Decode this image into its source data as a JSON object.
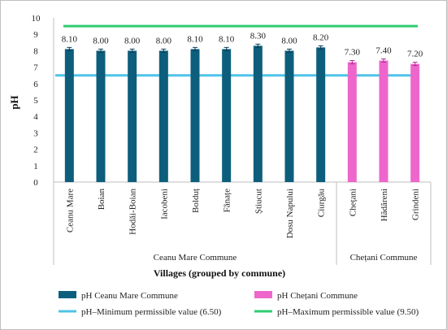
{
  "chart_data": {
    "type": "bar",
    "title": "",
    "ylabel": "pH",
    "xlabel": "Villages (grouped by commune)",
    "ylim": [
      0,
      10
    ],
    "yticks": [
      0,
      1,
      2,
      3,
      4,
      5,
      6,
      7,
      8,
      9,
      10
    ],
    "grid": false,
    "legend_position": "bottom",
    "series": [
      {
        "name": "pH Ceanu Mare Commune",
        "color": "#0d5e7c",
        "categories": [
          "Ceanu Mare",
          "Boian",
          "Hodăi-Boian",
          "Iacobeni",
          "Bolduț",
          "Fânațe",
          "Știucut",
          "Dosu Napului",
          "Ciurgău"
        ],
        "values": [
          8.1,
          8.0,
          8.0,
          8.0,
          8.1,
          8.1,
          8.3,
          8.0,
          8.2
        ],
        "labels": [
          "8.10",
          "8.00",
          "8.00",
          "8.00",
          "8.10",
          "8.10",
          "8.30",
          "8.00",
          "8.20"
        ]
      },
      {
        "name": "pH Chețani Commune",
        "color": "#ee66cc",
        "categories": [
          "Chețani",
          "Hădăreni",
          "Grindeni"
        ],
        "values": [
          7.3,
          7.4,
          7.2
        ],
        "labels": [
          "7.30",
          "7.40",
          "7.20"
        ]
      }
    ],
    "reference_lines": [
      {
        "name": "pH–Minimum permissible value (6.50)",
        "value": 6.5,
        "color": "#4fc3e8"
      },
      {
        "name": "pH–Maximum permissible value (9.50)",
        "value": 9.5,
        "color": "#2ecc71"
      }
    ],
    "groups": [
      {
        "label": "Ceanu Mare Commune",
        "count": 9
      },
      {
        "label": "Chețani Commune",
        "count": 3
      }
    ]
  }
}
